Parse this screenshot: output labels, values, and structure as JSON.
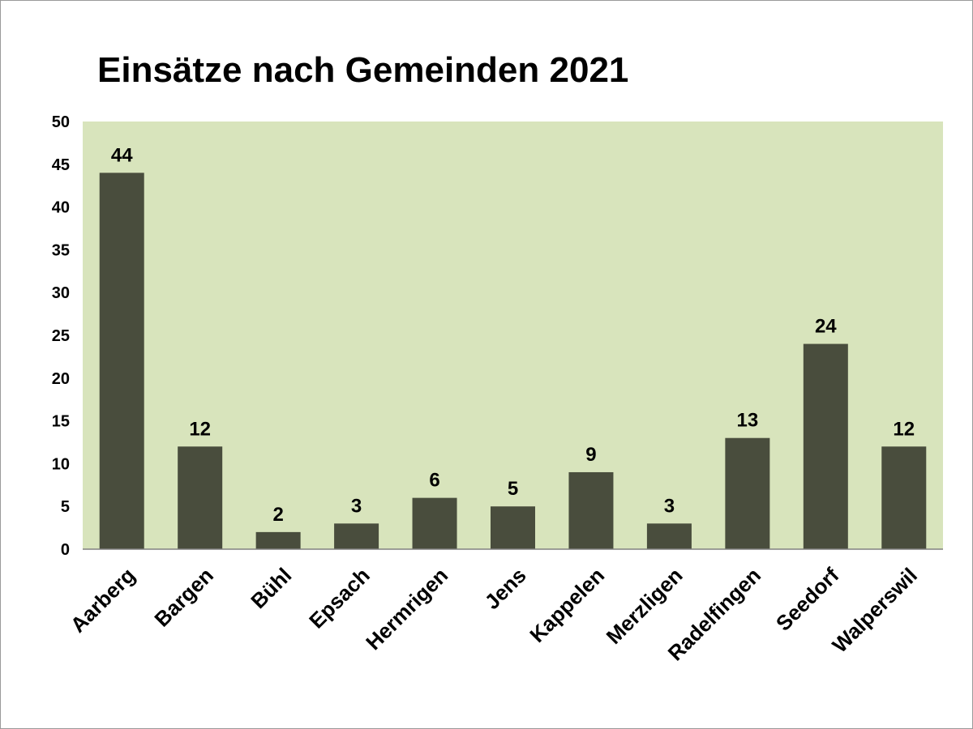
{
  "chart_data": {
    "type": "bar",
    "title": "Einsätze nach Gemeinden 2021",
    "xlabel": "",
    "ylabel": "",
    "categories": [
      "Aarberg",
      "Bargen",
      "Bühl",
      "Epsach",
      "Hermrigen",
      "Jens",
      "Kappelen",
      "Merzligen",
      "Radelfingen",
      "Seedorf",
      "Walperswil"
    ],
    "values": [
      44,
      12,
      2,
      3,
      6,
      5,
      9,
      3,
      13,
      24,
      12
    ],
    "ylim": [
      0,
      50
    ],
    "yticks": [
      0,
      5,
      10,
      15,
      20,
      25,
      30,
      35,
      40,
      45,
      50
    ],
    "grid": false,
    "legend": "none",
    "data_labels": true
  },
  "colors": {
    "plot_background": "#d8e4bc",
    "bar": "#494d3d",
    "text": "#000000",
    "axis": "#808080"
  }
}
